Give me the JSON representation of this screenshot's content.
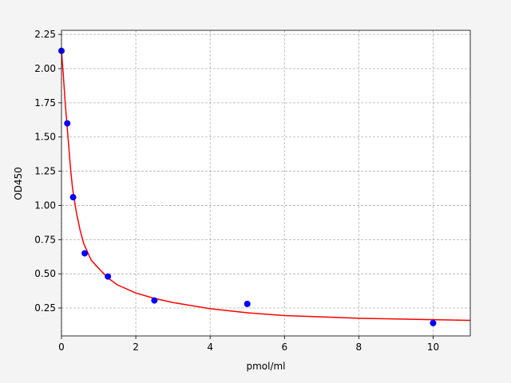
{
  "chart_data": {
    "type": "scatter",
    "xlabel": "pmol/ml",
    "ylabel": "OD450",
    "xlim": [
      0,
      11
    ],
    "xticks": [
      0,
      2,
      4,
      6,
      8,
      10
    ],
    "ylim": [
      0.046,
      2.28
    ],
    "yticks": [
      0.25,
      {
        "value": 0.5,
        "label": "0.50"
      },
      0.75,
      {
        "value": 1,
        "label": "1.00"
      },
      1.25,
      {
        "value": 1.5,
        "label": "1.50"
      },
      1.75,
      {
        "value": 2,
        "label": "2.00"
      },
      2.25
    ],
    "grid": true,
    "series": [
      {
        "type": "line",
        "color": "#ff0000",
        "x": [
          0,
          0.05,
          0.1,
          0.16,
          0.25,
          0.3,
          0.4,
          0.5,
          0.6,
          0.8,
          1,
          1.25,
          1.5,
          2,
          2.5,
          3,
          4,
          5,
          6,
          7,
          8,
          9,
          10,
          11
        ],
        "values": [
          2.13,
          1.95,
          1.75,
          1.55,
          1.25,
          1.12,
          0.95,
          0.82,
          0.72,
          0.6,
          0.54,
          0.47,
          0.42,
          0.36,
          0.32,
          0.29,
          0.245,
          0.215,
          0.195,
          0.185,
          0.175,
          0.17,
          0.165,
          0.16
        ]
      },
      {
        "type": "scatter",
        "color": "#0000ff",
        "x": [
          0,
          0.156,
          0.3125,
          0.625,
          1.25,
          2.5,
          5,
          10
        ],
        "values": [
          2.13,
          1.6,
          1.06,
          0.65,
          0.48,
          0.305,
          0.28,
          0.14
        ]
      }
    ]
  }
}
